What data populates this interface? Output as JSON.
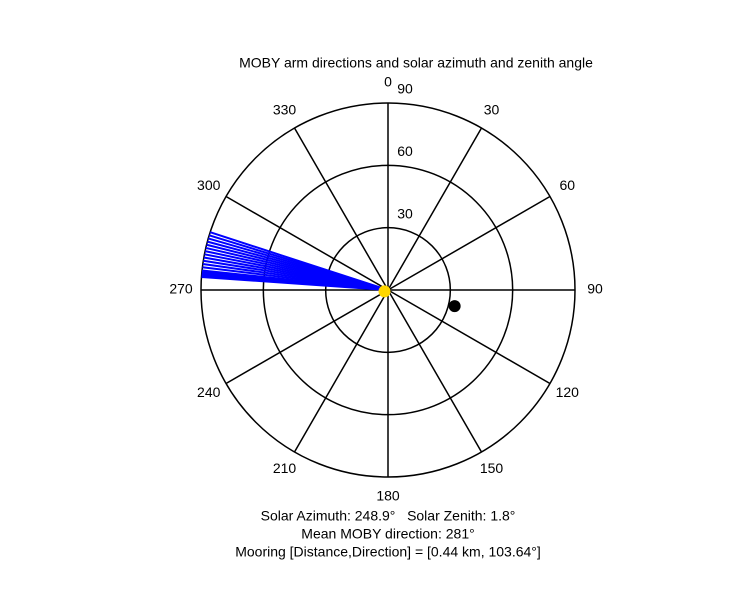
{
  "chart_data": {
    "type": "polar",
    "title": "MOBY arm directions and solar azimuth and zenith angle",
    "direction": "clockwise",
    "zero": "north",
    "rlim": [
      0,
      90
    ],
    "rticks": [
      30,
      60,
      90
    ],
    "thetaticks": [
      0,
      30,
      60,
      90,
      120,
      150,
      180,
      210,
      240,
      270,
      300,
      330
    ],
    "arms": {
      "color": "#0000ff",
      "values": [
        274,
        274.5,
        275,
        275.5,
        276,
        277,
        278,
        279,
        280,
        281,
        282,
        283,
        284,
        285,
        286,
        287,
        288
      ]
    },
    "points": [
      {
        "color": "#000000",
        "theta": 103.64,
        "r": 33
      },
      {
        "color": "#ffd700",
        "theta": 248.9,
        "r": 1.8
      }
    ],
    "annotations": [
      "Solar Azimuth: 248.9°   Solar Zenith: 1.8°",
      "Mean MOBY direction: 281°",
      "Mooring [Distance,Direction] = [0.44 km, 103.64°]"
    ]
  }
}
